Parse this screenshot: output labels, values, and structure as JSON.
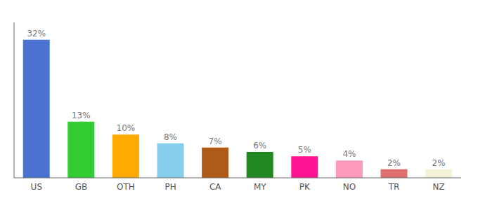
{
  "chart_data": {
    "type": "bar",
    "categories": [
      "US",
      "GB",
      "OTH",
      "PH",
      "CA",
      "MY",
      "PK",
      "NO",
      "TR",
      "NZ"
    ],
    "values": [
      32,
      13,
      10,
      8,
      7,
      6,
      5,
      4,
      2,
      2
    ],
    "value_labels": [
      "32%",
      "13%",
      "10%",
      "8%",
      "7%",
      "6%",
      "5%",
      "4%",
      "2%",
      "2%"
    ],
    "colors": [
      "#4a72d1",
      "#33cc33",
      "#ffaa00",
      "#87ceeb",
      "#b05a18",
      "#228822",
      "#ff1493",
      "#ff99bb",
      "#e07070",
      "#f5f0d8"
    ],
    "ylim": [
      0,
      36
    ],
    "data_labels": true,
    "tick_labels": "x",
    "grid": false
  }
}
